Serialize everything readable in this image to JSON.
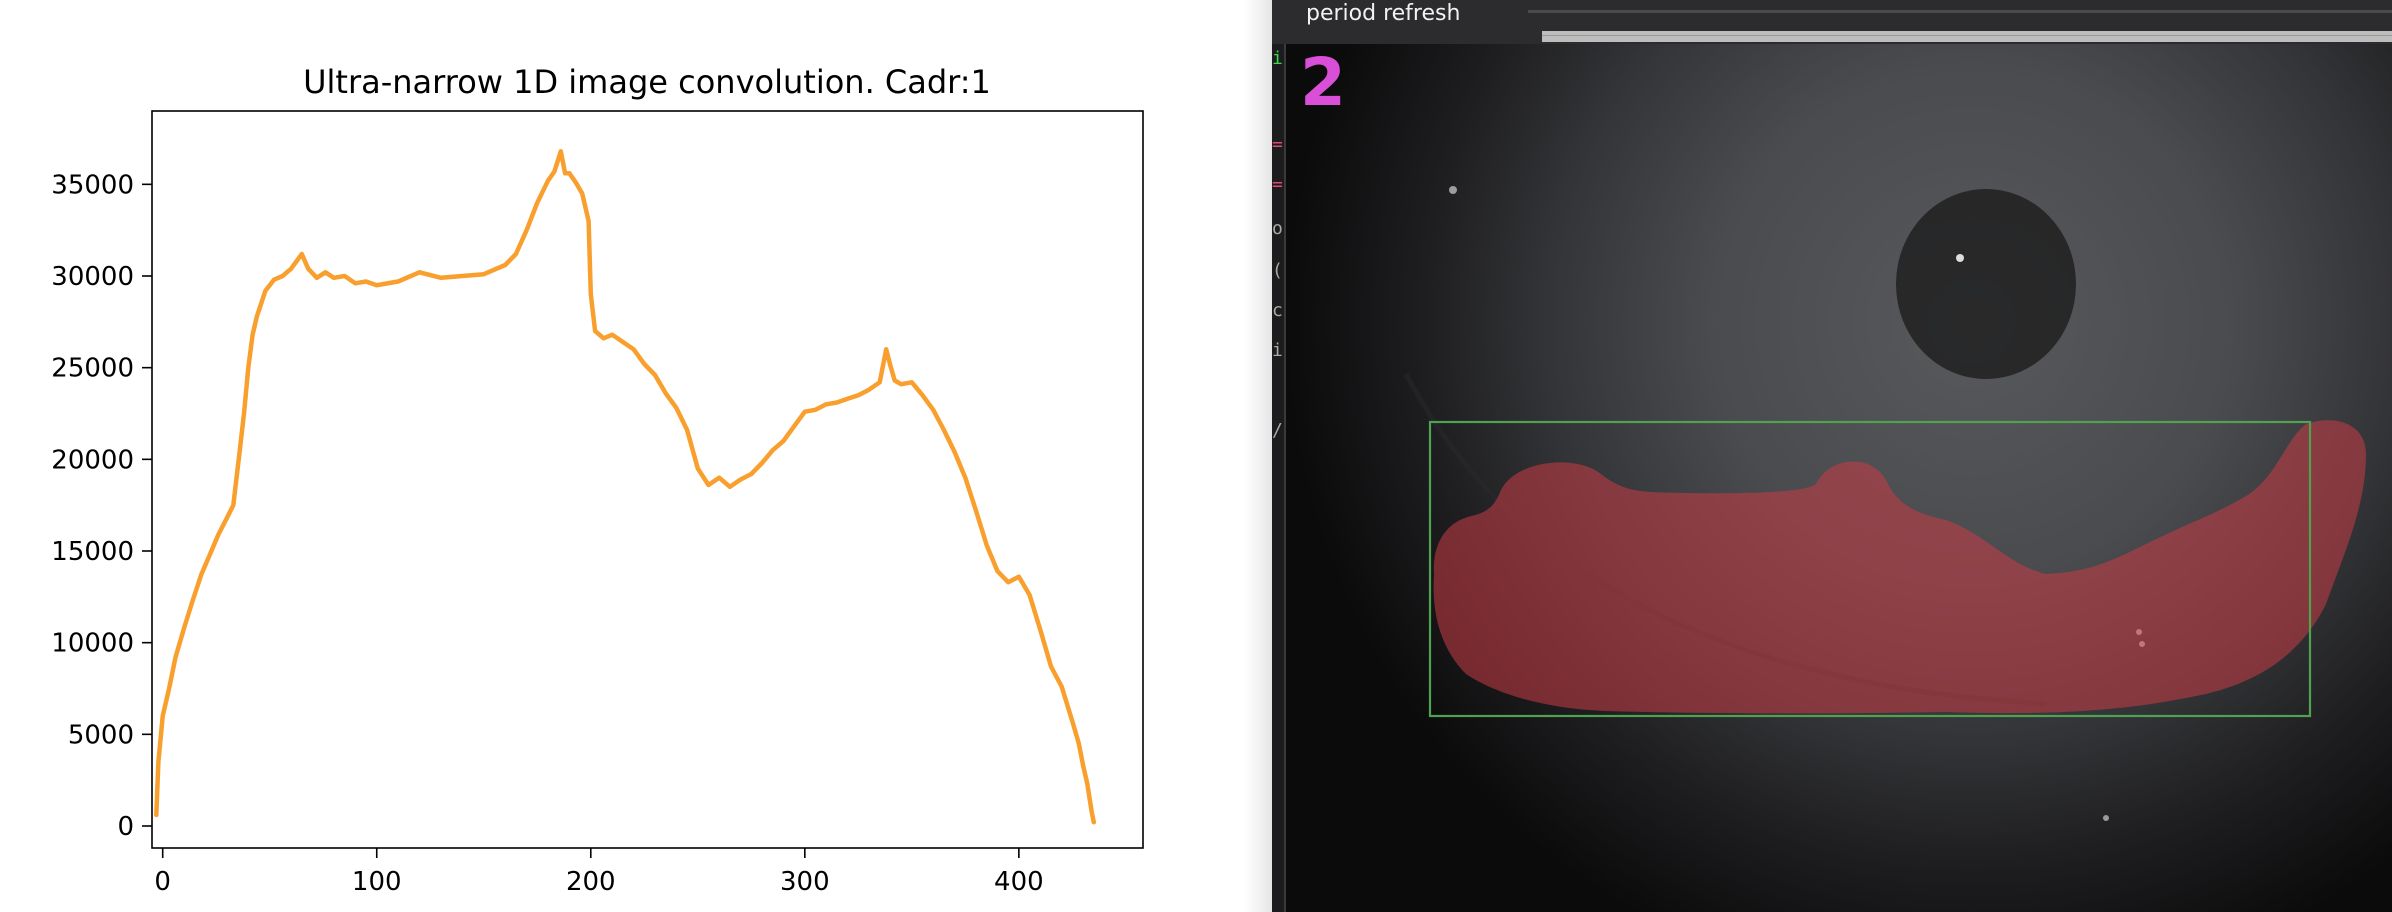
{
  "chart_data": {
    "type": "line",
    "title": "Ultra-narrow 1D image convolution. Cadr:1",
    "xlabel": "",
    "ylabel": "",
    "xlim": [
      -5,
      458
    ],
    "ylim": [
      -1200,
      39000
    ],
    "x_ticks": [
      0,
      100,
      200,
      300,
      400
    ],
    "y_ticks": [
      0,
      5000,
      10000,
      15000,
      20000,
      25000,
      30000,
      35000
    ],
    "line_color": "#f99f2e",
    "grid": false,
    "series": [
      {
        "x": [
          -3,
          -2,
          0,
          3,
          6,
          10,
          14,
          18,
          22,
          26,
          30,
          33,
          36,
          38,
          40,
          42,
          44,
          46,
          48,
          52,
          56,
          60,
          65,
          68,
          72,
          76,
          80,
          85,
          90,
          95,
          100,
          110,
          120,
          130,
          140,
          150,
          160,
          165,
          170,
          175,
          180,
          183,
          186,
          188,
          190,
          193,
          196,
          199,
          200,
          202,
          206,
          210,
          215,
          220,
          225,
          230,
          235,
          240,
          245,
          250,
          255,
          260,
          265,
          270,
          275,
          280,
          285,
          290,
          295,
          300,
          305,
          310,
          315,
          320,
          325,
          330,
          335,
          338,
          340,
          342,
          345,
          350,
          355,
          360,
          365,
          370,
          375,
          380,
          385,
          390,
          395,
          400,
          405,
          410,
          415,
          420,
          425,
          428,
          430,
          432,
          434,
          435
        ],
        "y": [
          600,
          3500,
          6000,
          7500,
          9200,
          10800,
          12300,
          13700,
          14800,
          15900,
          16800,
          17500,
          20500,
          22500,
          25000,
          26800,
          27800,
          28500,
          29200,
          29800,
          30000,
          30400,
          31200,
          30400,
          29900,
          30200,
          29900,
          30000,
          29600,
          29700,
          29500,
          29700,
          30200,
          29900,
          30000,
          30100,
          30600,
          31200,
          32500,
          34000,
          35200,
          35700,
          36800,
          35600,
          35600,
          35100,
          34500,
          33000,
          29000,
          27000,
          26600,
          26800,
          26400,
          26000,
          25200,
          24600,
          23600,
          22800,
          21600,
          19500,
          18600,
          19000,
          18500,
          18900,
          19200,
          19800,
          20500,
          21000,
          21800,
          22600,
          22700,
          23000,
          23100,
          23300,
          23500,
          23800,
          24200,
          26000,
          25100,
          24300,
          24100,
          24200,
          23500,
          22700,
          21600,
          20400,
          19000,
          17200,
          15300,
          13900,
          13300,
          13600,
          12600,
          10700,
          8700,
          7600,
          5700,
          4500,
          3300,
          2300,
          800,
          200
        ]
      }
    ]
  },
  "viewer": {
    "title": "period refresh",
    "frame_number": "2",
    "bbox_color": "#4fa24f",
    "mask_color": "#c83c46",
    "gutter_glyphs": [
      {
        "char": "i",
        "color": "#3bd84a"
      },
      {
        "char": "=",
        "color": "#e04a78"
      },
      {
        "char": "=",
        "color": "#e04a78"
      },
      {
        "char": "o",
        "color": "#a8a8a8"
      },
      {
        "char": "(",
        "color": "#a8a8a8"
      },
      {
        "char": "c",
        "color": "#a8a8a8"
      },
      {
        "char": "i",
        "color": "#a8a8a8"
      },
      {
        "char": "/",
        "color": "#a8a8a8"
      }
    ]
  }
}
